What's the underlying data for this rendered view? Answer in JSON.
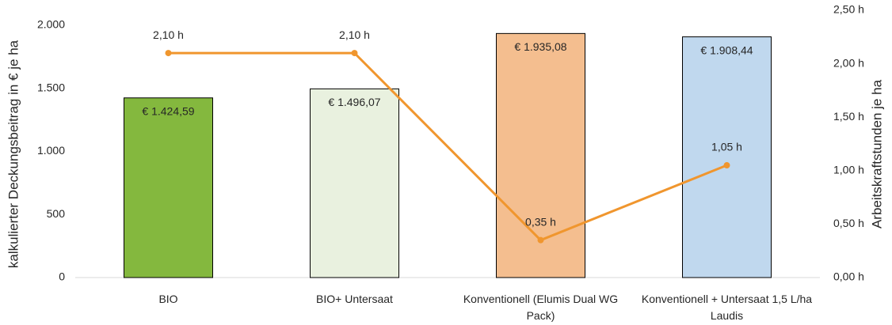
{
  "chart_data": {
    "type": "bar+line",
    "y_label": "kalkulierter Deckungsbeitrag in € je ha",
    "y2_label": "Arbeitskraftstunden je ha",
    "categories": [
      "BIO",
      "BIO+ Untersaat",
      "Konventionell (Elumis Dual WG Pack)",
      "Konventionell + Untersaat 1,5 L/ha Laudis"
    ],
    "series": [
      {
        "type": "bar",
        "axis": "y",
        "colors": [
          "#84b83e",
          "#e9f1df",
          "#f4be8f",
          "#c0d8ee"
        ],
        "values": [
          1424.59,
          1496.07,
          1935.08,
          1908.44
        ],
        "value_labels": [
          "€ 1.424,59",
          "€ 1.496,07",
          "€ 1.935,08",
          "€ 1.908,44"
        ]
      },
      {
        "type": "line",
        "axis": "y2",
        "color": "#f0962e",
        "values": [
          2.1,
          2.1,
          0.35,
          1.05
        ],
        "value_labels": [
          "2,10 h",
          "2,10 h",
          "0,35 h",
          "1,05 h"
        ]
      }
    ],
    "ylim": [
      0,
      2000
    ],
    "yticks": [
      0,
      {
        "value": 500,
        "label": "500"
      },
      {
        "value": 1000,
        "label": "1.000"
      },
      {
        "value": 1500,
        "label": "1.500"
      },
      {
        "value": 2000,
        "label": "2.000"
      }
    ],
    "y2lim": [
      0,
      2.5
    ],
    "y2ticks": [
      {
        "value": 0,
        "label": "0,00 h"
      },
      {
        "value": 0.5,
        "label": "0,50 h"
      },
      {
        "value": 1,
        "label": "1,00 h"
      },
      {
        "value": 1.5,
        "label": "1,50 h"
      },
      {
        "value": 2,
        "label": "2,00 h"
      },
      {
        "value": 2.5,
        "label": "2,50 h"
      }
    ],
    "grid": false
  }
}
